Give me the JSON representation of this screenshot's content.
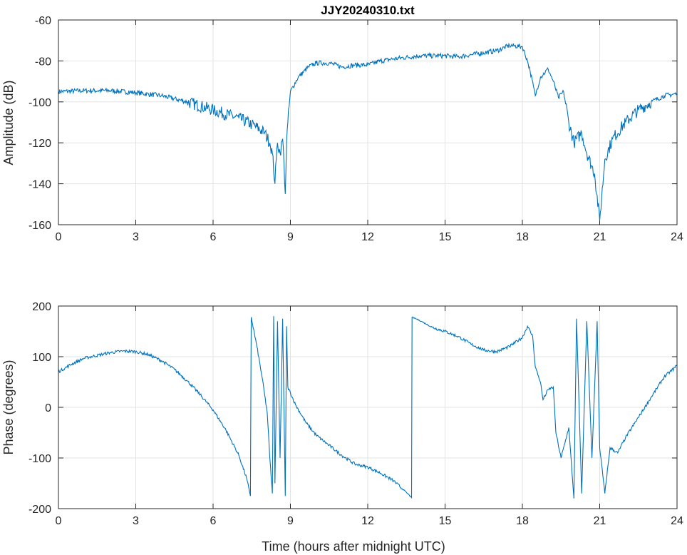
{
  "chart_data": [
    {
      "type": "line",
      "title": "JJY20240310.txt",
      "xlabel": "",
      "ylabel": "Amplitude (dB)",
      "xlim": [
        0,
        24
      ],
      "ylim": [
        -160,
        -60
      ],
      "xticks": [
        0,
        3,
        6,
        9,
        12,
        15,
        18,
        21,
        24
      ],
      "yticks": [
        -60,
        -80,
        -100,
        -120,
        -140,
        -160
      ],
      "grid": true,
      "color": "#0072BD",
      "series": [
        {
          "name": "Amplitude",
          "x": [
            0,
            1,
            2,
            3,
            4,
            5,
            6,
            7,
            7.5,
            8,
            8.2,
            8.3,
            8.4,
            8.45,
            8.5,
            8.6,
            8.7,
            8.75,
            8.8,
            8.85,
            8.9,
            9,
            9.3,
            9.7,
            10,
            10.5,
            11,
            11.5,
            12,
            12.5,
            13,
            14,
            15,
            15.5,
            16,
            17,
            17.5,
            18,
            18.2,
            18.3,
            18.5,
            18.7,
            19,
            19.2,
            19.4,
            19.6,
            19.8,
            20,
            20.3,
            20.5,
            20.8,
            21,
            21.2,
            21.5,
            22,
            22.5,
            23,
            23.5,
            24
          ],
          "y": [
            -95,
            -94.5,
            -94.5,
            -95.5,
            -97,
            -100,
            -104,
            -108,
            -111,
            -115,
            -120,
            -125,
            -140,
            -128,
            -120,
            -125,
            -118,
            -130,
            -145,
            -120,
            -110,
            -95,
            -88,
            -83,
            -81,
            -81,
            -83,
            -82,
            -82,
            -80,
            -79,
            -77.5,
            -77.5,
            -78,
            -77,
            -75,
            -72.5,
            -73,
            -80,
            -85,
            -97,
            -88,
            -84,
            -90,
            -98,
            -95,
            -110,
            -120,
            -115,
            -125,
            -135,
            -158,
            -128,
            -118,
            -110,
            -104,
            -100,
            -97,
            -96
          ]
        }
      ]
    },
    {
      "type": "line",
      "title": "",
      "xlabel": "Time (hours after midnight UTC)",
      "ylabel": "Phase (degrees)",
      "xlim": [
        0,
        24
      ],
      "ylim": [
        -200,
        200
      ],
      "xticks": [
        0,
        3,
        6,
        9,
        12,
        15,
        18,
        21,
        24
      ],
      "yticks": [
        200,
        100,
        0,
        -100,
        -200
      ],
      "grid": true,
      "color": "#0072BD",
      "series": [
        {
          "name": "Phase",
          "x": [
            0,
            0.5,
            1,
            2,
            2.5,
            3,
            3.5,
            4,
            4.5,
            5,
            5.5,
            6,
            6.5,
            7,
            7.3,
            7.45,
            7.48,
            7.7,
            7.9,
            8.1,
            8.2,
            8.3,
            8.35,
            8.4,
            8.5,
            8.6,
            8.7,
            8.8,
            8.85,
            8.9,
            9.2,
            9.6,
            10,
            10.5,
            11,
            11.5,
            12,
            12.5,
            13,
            13.5,
            13.7,
            13.72,
            14,
            14.5,
            15,
            15.5,
            16,
            16.5,
            17,
            17.5,
            18,
            18.2,
            18.4,
            18.5,
            18.7,
            18.8,
            19,
            19.2,
            19.3,
            19.5,
            19.8,
            20,
            20.1,
            20.3,
            20.5,
            20.7,
            20.9,
            21,
            21.2,
            21.4,
            21.7,
            22,
            22.5,
            23,
            23.5,
            24
          ],
          "y": [
            70,
            85,
            97,
            108,
            111,
            110,
            104,
            92,
            75,
            52,
            25,
            -5,
            -45,
            -95,
            -140,
            -175,
            178,
            120,
            60,
            -10,
            -100,
            -170,
            180,
            -150,
            170,
            -100,
            175,
            -175,
            160,
            40,
            5,
            -30,
            -55,
            -75,
            -95,
            -112,
            -118,
            -130,
            -145,
            -168,
            -178,
            178,
            172,
            158,
            150,
            140,
            125,
            113,
            110,
            120,
            138,
            160,
            140,
            80,
            50,
            15,
            35,
            40,
            -50,
            -100,
            -40,
            -180,
            175,
            -170,
            170,
            -100,
            170,
            -80,
            -170,
            -80,
            -90,
            -60,
            -20,
            20,
            60,
            82
          ]
        }
      ]
    }
  ]
}
